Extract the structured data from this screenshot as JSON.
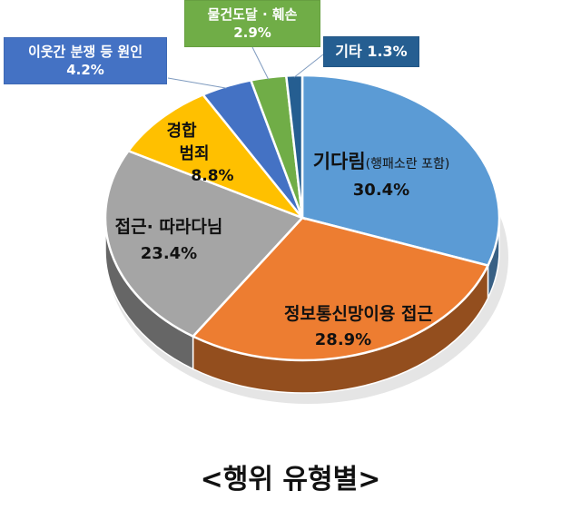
{
  "chart_data": {
    "type": "pie",
    "style": "3d",
    "title": "<행위 유형별>",
    "slices": [
      {
        "label": "기다림",
        "sublabel": "(행패소란 포함)",
        "value": 30.4,
        "value_label": "30.4%",
        "color": "#5B9BD5"
      },
      {
        "label": "정보통신망이용 접근",
        "value": 28.9,
        "value_label": "28.9%",
        "color": "#ED7D31"
      },
      {
        "label": "접근· 따라다님",
        "value": 23.4,
        "value_label": "23.4%",
        "color": "#A5A5A5"
      },
      {
        "label": "경합\n범죄",
        "value": 8.8,
        "value_label": "8.8%",
        "color": "#FFC000"
      },
      {
        "label": "이웃간 분쟁 등 원인",
        "value": 4.2,
        "value_label": "4.2%",
        "color": "#4472C4"
      },
      {
        "label": "물건도달 · 훼손",
        "value": 2.9,
        "value_label": "2.9%",
        "color": "#70AD47"
      },
      {
        "label": "기타",
        "value": 1.3,
        "value_label": "1.3%",
        "color": "#255E91"
      }
    ]
  }
}
